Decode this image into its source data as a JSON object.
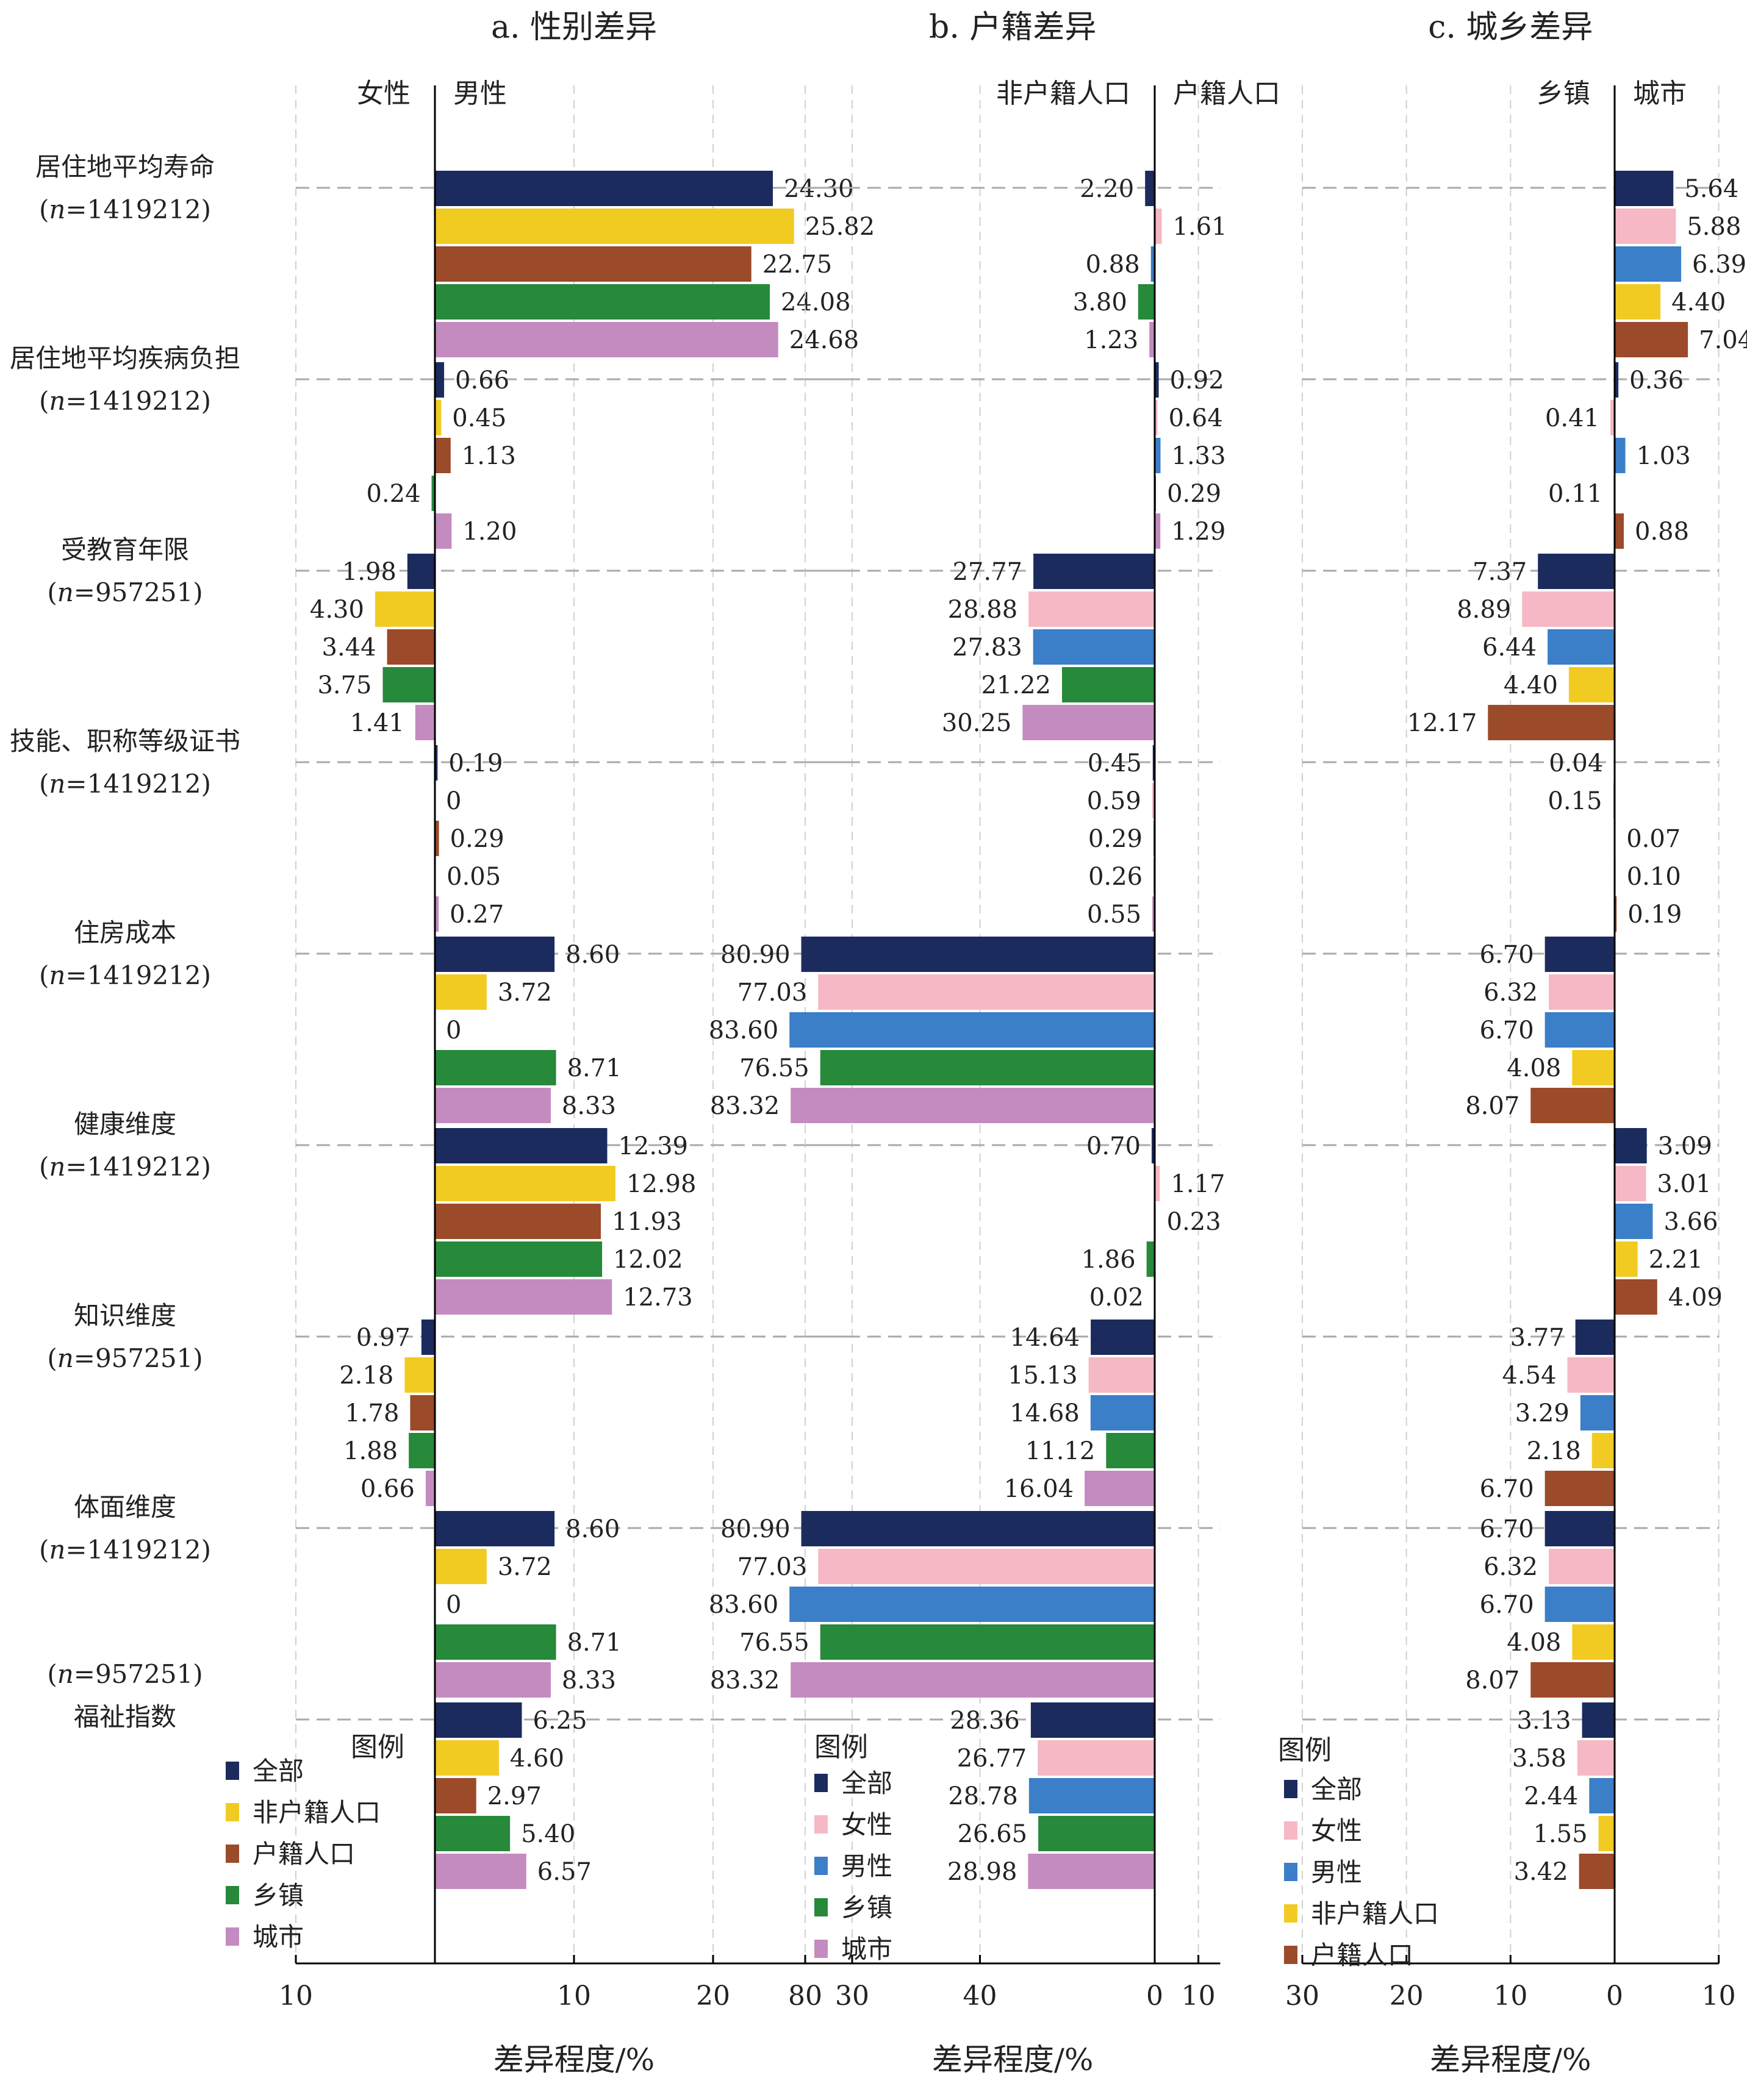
{
  "colors": {
    "全部": "#1c2b5e",
    "女性": "#f5b8c4",
    "男性": "#3a7fc8",
    "非户籍人口": "#f2cb22",
    "户籍人口": "#9b4a2a",
    "乡镇": "#27893a",
    "城市": "#c48bc0"
  },
  "chart_data": {
    "type": "bar",
    "rows": [
      {
        "label": "居住地平均寿命",
        "n": "1419212",
        "n_above": false
      },
      {
        "label": "居住地平均疾病负担",
        "n": "1419212",
        "n_above": false
      },
      {
        "label": "受教育年限",
        "n": "957251",
        "n_above": false
      },
      {
        "label": "技能、职称等级证书",
        "n": "1419212",
        "n_above": false
      },
      {
        "label": "住房成本",
        "n": "1419212",
        "n_above": false
      },
      {
        "label": "健康维度",
        "n": "1419212",
        "n_above": false
      },
      {
        "label": "知识维度",
        "n": "957251",
        "n_above": false
      },
      {
        "label": "体面维度",
        "n": "1419212",
        "n_above": false
      },
      {
        "label": "福祉指数",
        "n": "957251",
        "n_above": true
      }
    ],
    "xlabel": "差异程度/%",
    "panels": [
      {
        "title": "a. 性别差异",
        "left_label": "女性",
        "right_label": "男性",
        "ticks": [
          {
            "v": -10,
            "label": "10"
          },
          {
            "v": 10,
            "label": "10"
          },
          {
            "v": 20,
            "label": "20"
          },
          {
            "v": 30,
            "label": "30"
          }
        ],
        "xlim": [
          -10,
          30
        ],
        "grid": [
          -10,
          10,
          20,
          30
        ],
        "series": [
          "全部",
          "非户籍人口",
          "户籍人口",
          "乡镇",
          "城市"
        ],
        "legend_title": "图例",
        "values": [
          [
            24.3,
            25.82,
            22.75,
            24.08,
            24.68
          ],
          [
            0.66,
            0.45,
            1.13,
            -0.24,
            1.2
          ],
          [
            -1.98,
            -4.3,
            -3.44,
            -3.75,
            -1.41
          ],
          [
            0.19,
            0,
            0.29,
            0.05,
            0.27
          ],
          [
            8.6,
            3.72,
            0,
            8.71,
            8.33
          ],
          [
            12.39,
            12.98,
            11.93,
            12.02,
            12.73
          ],
          [
            -0.97,
            -2.18,
            -1.78,
            -1.88,
            -0.66
          ],
          [
            8.6,
            3.72,
            0,
            8.71,
            8.33
          ],
          [
            6.25,
            4.6,
            2.97,
            5.4,
            6.57
          ]
        ]
      },
      {
        "title": "b. 户籍差异",
        "left_label": "非户籍人口",
        "right_label": "户籍人口",
        "ticks": [
          {
            "v": -80,
            "label": "80"
          },
          {
            "v": -40,
            "label": "40"
          },
          {
            "v": 0,
            "label": "0"
          },
          {
            "v": 10,
            "label": "10"
          }
        ],
        "xlim": [
          -80,
          15
        ],
        "grid": [
          -80,
          -40,
          10
        ],
        "series": [
          "全部",
          "女性",
          "男性",
          "乡镇",
          "城市"
        ],
        "legend_title": "图例",
        "values": [
          [
            -2.2,
            1.61,
            -0.88,
            -3.8,
            -1.23
          ],
          [
            0.92,
            0.64,
            1.33,
            0.29,
            1.29
          ],
          [
            -27.77,
            -28.88,
            -27.83,
            -21.22,
            -30.25
          ],
          [
            -0.45,
            -0.59,
            -0.29,
            -0.26,
            -0.55
          ],
          [
            -80.9,
            -77.03,
            -83.6,
            -76.55,
            -83.32
          ],
          [
            -0.7,
            1.17,
            0.23,
            -1.86,
            -0.02
          ],
          [
            -14.64,
            -15.13,
            -14.68,
            -11.12,
            -16.04
          ],
          [
            -80.9,
            -77.03,
            -83.6,
            -76.55,
            -83.32
          ],
          [
            -28.36,
            -26.77,
            -28.78,
            -26.65,
            -28.98
          ]
        ]
      },
      {
        "title": "c. 城乡差异",
        "left_label": "乡镇",
        "right_label": "城市",
        "ticks": [
          {
            "v": -30,
            "label": "30"
          },
          {
            "v": -20,
            "label": "20"
          },
          {
            "v": -10,
            "label": "10"
          },
          {
            "v": 0,
            "label": "0"
          },
          {
            "v": 10,
            "label": "10"
          }
        ],
        "xlim": [
          -30,
          10
        ],
        "grid": [
          -30,
          -20,
          -10,
          10
        ],
        "series": [
          "全部",
          "女性",
          "男性",
          "非户籍人口",
          "户籍人口"
        ],
        "legend_title": "图例",
        "values": [
          [
            5.64,
            5.88,
            6.39,
            4.4,
            7.04
          ],
          [
            0.36,
            -0.41,
            1.03,
            -0.11,
            0.88
          ],
          [
            -7.37,
            -8.89,
            -6.44,
            -4.4,
            -12.17
          ],
          [
            -0.04,
            -0.15,
            0.07,
            0.1,
            0.19
          ],
          [
            -6.7,
            -6.32,
            -6.7,
            -4.08,
            -8.07
          ],
          [
            3.09,
            3.01,
            3.66,
            2.21,
            4.09
          ],
          [
            -3.77,
            -4.54,
            -3.29,
            -2.18,
            -6.7
          ],
          [
            -6.7,
            -6.32,
            -6.7,
            -4.08,
            -8.07
          ],
          [
            -3.13,
            -3.58,
            -2.44,
            -1.55,
            -3.42
          ]
        ]
      }
    ]
  }
}
